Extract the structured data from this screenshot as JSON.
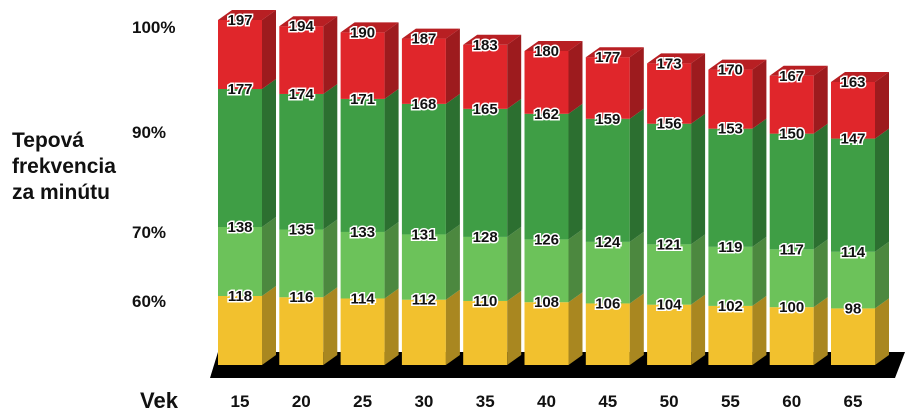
{
  "chart_data": {
    "type": "bar",
    "stacked": true,
    "style": "3d",
    "ylabel": "Tepová frekvencia za minútu",
    "xlabel": "Vek",
    "categories": [
      "15",
      "20",
      "25",
      "30",
      "35",
      "40",
      "45",
      "50",
      "55",
      "60",
      "65"
    ],
    "y_ticks": [
      "100%",
      "90%",
      "70%",
      "60%"
    ],
    "series": [
      {
        "level": "60%",
        "color": "#f2c12e",
        "values": [
          118,
          116,
          114,
          112,
          110,
          108,
          106,
          104,
          102,
          100,
          98
        ]
      },
      {
        "level": "70%",
        "color": "#6cc25a",
        "values": [
          138,
          135,
          133,
          131,
          128,
          126,
          124,
          121,
          119,
          117,
          114
        ]
      },
      {
        "level": "90%",
        "color": "#3f9e45",
        "values": [
          177,
          174,
          171,
          168,
          165,
          162,
          159,
          156,
          153,
          150,
          147
        ]
      },
      {
        "level": "100%",
        "color": "#e0262b",
        "values": [
          197,
          194,
          190,
          187,
          183,
          180,
          177,
          173,
          170,
          167,
          163
        ]
      }
    ],
    "grid": false,
    "legend": "none"
  }
}
